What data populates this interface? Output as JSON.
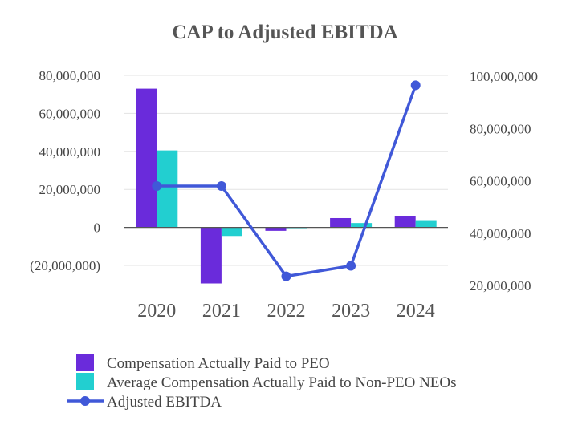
{
  "chart_data": {
    "type": "bar",
    "title": "CAP to Adjusted EBITDA",
    "categories": [
      "2020",
      "2021",
      "2022",
      "2023",
      "2024"
    ],
    "series": [
      {
        "name": "Compensation Actually Paid to PEO",
        "type": "bar",
        "axis": "left",
        "color": "#6A2BDB",
        "values": [
          73000000,
          -29500000,
          -1800000,
          4900000,
          5800000
        ]
      },
      {
        "name": "Average Compensation Actually Paid to Non-PEO NEOs",
        "type": "bar",
        "axis": "left",
        "color": "#22CFD0",
        "values": [
          40500000,
          -4500000,
          -200000,
          2300000,
          3400000
        ]
      },
      {
        "name": "Adjusted EBITDA",
        "type": "line",
        "axis": "right",
        "color": "#4058D8",
        "values": [
          58000000,
          58000000,
          23500000,
          27500000,
          96500000
        ]
      }
    ],
    "y_left": {
      "ylim": [
        -20000000,
        80000000
      ],
      "ticks": [
        80000000,
        60000000,
        40000000,
        20000000,
        0,
        -20000000
      ],
      "tick_labels": [
        "80,000,000",
        "60,000,000",
        "40,000,000",
        "20,000,000",
        "0",
        "(20,000,000)"
      ]
    },
    "y_right": {
      "ylim": [
        20000000,
        100000000
      ],
      "ticks": [
        100000000,
        80000000,
        60000000,
        40000000,
        20000000
      ],
      "tick_labels": [
        "100,000,000",
        "80,000,000",
        "60,000,000",
        "40,000,000",
        "20,000,000"
      ]
    },
    "grid": true,
    "legend_position": "bottom-left"
  }
}
